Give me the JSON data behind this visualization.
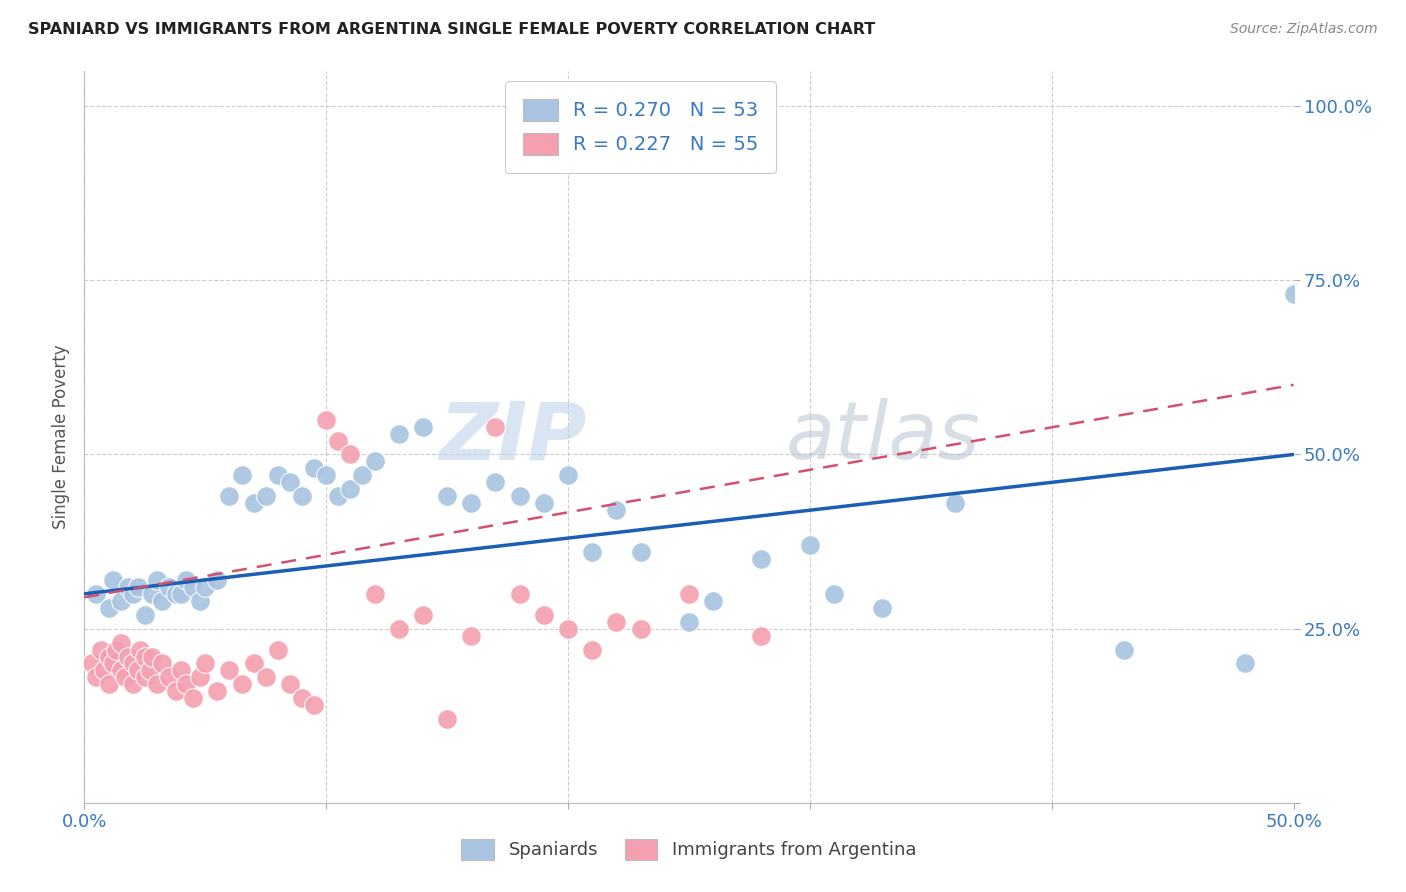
{
  "title": "SPANIARD VS IMMIGRANTS FROM ARGENTINA SINGLE FEMALE POVERTY CORRELATION CHART",
  "source": "Source: ZipAtlas.com",
  "ylabel": "Single Female Poverty",
  "watermark_zip": "ZIP",
  "watermark_atlas": "atlas",
  "xlim": [
    0.0,
    0.5
  ],
  "ylim": [
    0.0,
    1.05
  ],
  "xticks": [
    0.0,
    0.1,
    0.2,
    0.3,
    0.4,
    0.5
  ],
  "xticklabels": [
    "0.0%",
    "",
    "",
    "",
    "",
    "50.0%"
  ],
  "yticks": [
    0.0,
    0.25,
    0.5,
    0.75,
    1.0
  ],
  "yticklabels": [
    "",
    "25.0%",
    "50.0%",
    "75.0%",
    "100.0%"
  ],
  "legend_blue_R": "0.270",
  "legend_blue_N": "53",
  "legend_pink_R": "0.227",
  "legend_pink_N": "55",
  "blue_color": "#a8c4e0",
  "pink_color": "#f4a0b0",
  "line_blue": "#1a5fb4",
  "line_pink_solid": "#d45070",
  "grid_color": "#c8c8c8",
  "blue_scatter_x": [
    0.005,
    0.01,
    0.012,
    0.015,
    0.018,
    0.02,
    0.022,
    0.025,
    0.028,
    0.03,
    0.032,
    0.035,
    0.038,
    0.04,
    0.042,
    0.045,
    0.048,
    0.05,
    0.055,
    0.06,
    0.065,
    0.07,
    0.075,
    0.08,
    0.085,
    0.09,
    0.095,
    0.1,
    0.105,
    0.11,
    0.115,
    0.12,
    0.13,
    0.14,
    0.15,
    0.16,
    0.17,
    0.18,
    0.19,
    0.2,
    0.21,
    0.22,
    0.23,
    0.25,
    0.26,
    0.28,
    0.3,
    0.31,
    0.33,
    0.36,
    0.43,
    0.48,
    0.5
  ],
  "blue_scatter_y": [
    0.3,
    0.28,
    0.32,
    0.29,
    0.31,
    0.3,
    0.31,
    0.27,
    0.3,
    0.32,
    0.29,
    0.31,
    0.3,
    0.3,
    0.32,
    0.31,
    0.29,
    0.31,
    0.32,
    0.44,
    0.47,
    0.43,
    0.44,
    0.47,
    0.46,
    0.44,
    0.48,
    0.47,
    0.44,
    0.45,
    0.47,
    0.49,
    0.53,
    0.54,
    0.44,
    0.43,
    0.46,
    0.44,
    0.43,
    0.47,
    0.36,
    0.42,
    0.36,
    0.26,
    0.29,
    0.35,
    0.37,
    0.3,
    0.28,
    0.43,
    0.22,
    0.2,
    0.73
  ],
  "pink_scatter_x": [
    0.003,
    0.005,
    0.007,
    0.008,
    0.01,
    0.01,
    0.012,
    0.013,
    0.015,
    0.015,
    0.017,
    0.018,
    0.02,
    0.02,
    0.022,
    0.023,
    0.025,
    0.025,
    0.027,
    0.028,
    0.03,
    0.032,
    0.035,
    0.038,
    0.04,
    0.042,
    0.045,
    0.048,
    0.05,
    0.055,
    0.06,
    0.065,
    0.07,
    0.075,
    0.08,
    0.085,
    0.09,
    0.095,
    0.1,
    0.105,
    0.11,
    0.12,
    0.13,
    0.14,
    0.15,
    0.16,
    0.17,
    0.18,
    0.19,
    0.2,
    0.21,
    0.22,
    0.23,
    0.25,
    0.28
  ],
  "pink_scatter_y": [
    0.2,
    0.18,
    0.22,
    0.19,
    0.21,
    0.17,
    0.2,
    0.22,
    0.19,
    0.23,
    0.18,
    0.21,
    0.17,
    0.2,
    0.19,
    0.22,
    0.18,
    0.21,
    0.19,
    0.21,
    0.17,
    0.2,
    0.18,
    0.16,
    0.19,
    0.17,
    0.15,
    0.18,
    0.2,
    0.16,
    0.19,
    0.17,
    0.2,
    0.18,
    0.22,
    0.17,
    0.15,
    0.14,
    0.55,
    0.52,
    0.5,
    0.3,
    0.25,
    0.27,
    0.12,
    0.24,
    0.54,
    0.3,
    0.27,
    0.25,
    0.22,
    0.26,
    0.25,
    0.3,
    0.24
  ],
  "blue_line_x0": 0.0,
  "blue_line_x1": 0.5,
  "blue_line_y0": 0.3,
  "blue_line_y1": 0.5,
  "pink_line_x0": 0.0,
  "pink_line_x1": 0.5,
  "pink_line_y0": 0.295,
  "pink_line_y1": 0.6
}
